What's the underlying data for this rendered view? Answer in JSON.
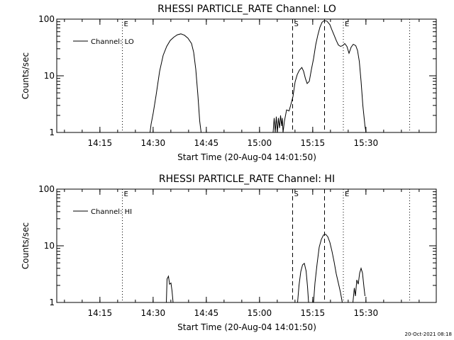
{
  "footer": {
    "timestamp": "20-Oct-2021 08:18"
  },
  "chart_data": [
    {
      "type": "line",
      "title": "RHESSI PARTICLE_RATE Channel: LO",
      "xlabel": "Start Time (20-Aug-04 14:01:50)",
      "ylabel": "Counts/sec",
      "yscale": "log",
      "ylim": [
        1,
        100
      ],
      "xlim_min": [
        1,
        108
      ],
      "x_ticks": [
        {
          "min": 13.17,
          "label": "14:15"
        },
        {
          "min": 28.17,
          "label": "14:30"
        },
        {
          "min": 43.17,
          "label": "14:45"
        },
        {
          "min": 58.17,
          "label": "15:00"
        },
        {
          "min": 73.17,
          "label": "15:15"
        },
        {
          "min": 88.17,
          "label": "15:30"
        }
      ],
      "y_ticks": [
        {
          "value": 1,
          "label": "1"
        },
        {
          "value": 10,
          "label": "10"
        },
        {
          "value": 100,
          "label": "100"
        }
      ],
      "legend": "top-left",
      "series": [
        {
          "name": "Channel: LO",
          "points": [
            [
              27.3,
              1
            ],
            [
              27.6,
              1.4
            ],
            [
              28.2,
              2.2
            ],
            [
              29,
              4.5
            ],
            [
              30,
              12
            ],
            [
              31,
              23
            ],
            [
              32,
              33
            ],
            [
              33,
              42
            ],
            [
              34,
              48
            ],
            [
              35,
              53
            ],
            [
              36,
              55
            ],
            [
              37,
              52
            ],
            [
              38,
              46
            ],
            [
              39,
              37
            ],
            [
              39.6,
              26
            ],
            [
              40.2,
              13
            ],
            [
              40.8,
              4.5
            ],
            [
              41.3,
              1.6
            ],
            [
              41.7,
              1
            ],
            [
              null,
              null
            ],
            [
              62,
              1
            ],
            [
              62.3,
              1.8
            ],
            [
              62.6,
              1
            ],
            [
              62.9,
              1.9
            ],
            [
              63.2,
              1
            ],
            [
              63.5,
              1.8
            ],
            [
              63.8,
              1.2
            ],
            [
              64.1,
              2
            ],
            [
              64.4,
              1.3
            ],
            [
              64.6,
              1.8
            ],
            [
              64.8,
              1
            ],
            [
              65.2,
              1.6
            ],
            [
              65.8,
              2.5
            ],
            [
              66.5,
              2.4
            ],
            [
              67,
              3.1
            ],
            [
              67.6,
              4.3
            ],
            [
              68.2,
              7.8
            ],
            [
              68.8,
              10.5
            ],
            [
              69.4,
              12.5
            ],
            [
              70.1,
              14
            ],
            [
              70.6,
              12
            ],
            [
              71.1,
              9
            ],
            [
              71.6,
              7.3
            ],
            [
              72.2,
              8
            ],
            [
              72.8,
              13
            ],
            [
              73.4,
              20
            ],
            [
              74,
              35
            ],
            [
              74.6,
              52
            ],
            [
              75.2,
              72
            ],
            [
              75.8,
              88
            ],
            [
              76.4,
              94
            ],
            [
              77.2,
              92
            ],
            [
              78,
              80
            ],
            [
              78.6,
              64
            ],
            [
              79.2,
              52
            ],
            [
              79.8,
              42
            ],
            [
              80.4,
              35
            ],
            [
              81,
              33
            ],
            [
              81.6,
              34
            ],
            [
              82.2,
              37
            ],
            [
              82.8,
              33
            ],
            [
              83.4,
              25
            ],
            [
              84,
              32
            ],
            [
              84.6,
              36
            ],
            [
              85.3,
              34
            ],
            [
              85.8,
              28
            ],
            [
              86.3,
              18
            ],
            [
              86.8,
              8
            ],
            [
              87.3,
              3
            ],
            [
              87.9,
              1.3
            ],
            [
              88.2,
              1
            ]
          ]
        }
      ],
      "markers": [
        {
          "min": 19.5,
          "style": "dotted",
          "label": "E"
        },
        {
          "min": 67.5,
          "style": "dashed",
          "label": "S"
        },
        {
          "min": 76.5,
          "style": "dashed",
          "label": ""
        },
        {
          "min": 81.8,
          "style": "dotted",
          "label": "E"
        },
        {
          "min": 100.5,
          "style": "dotted",
          "label": ""
        }
      ]
    },
    {
      "type": "line",
      "title": "RHESSI PARTICLE_RATE Channel: HI",
      "xlabel": "Start Time (20-Aug-04 14:01:50)",
      "ylabel": "Counts/sec",
      "yscale": "log",
      "ylim": [
        1,
        100
      ],
      "xlim_min": [
        1,
        108
      ],
      "x_ticks": [
        {
          "min": 13.17,
          "label": "14:15"
        },
        {
          "min": 28.17,
          "label": "14:30"
        },
        {
          "min": 43.17,
          "label": "14:45"
        },
        {
          "min": 58.17,
          "label": "15:00"
        },
        {
          "min": 73.17,
          "label": "15:15"
        },
        {
          "min": 88.17,
          "label": "15:30"
        }
      ],
      "y_ticks": [
        {
          "value": 1,
          "label": "1"
        },
        {
          "value": 10,
          "label": "10"
        },
        {
          "value": 100,
          "label": "100"
        }
      ],
      "legend": "top-left",
      "series": [
        {
          "name": "Channel: HI",
          "points": [
            [
              31.9,
              1
            ],
            [
              32.1,
              2.6
            ],
            [
              32.5,
              2.9
            ],
            [
              32.8,
              2.1
            ],
            [
              33.2,
              2.2
            ],
            [
              33.5,
              1.6
            ],
            [
              33.8,
              1
            ],
            [
              null,
              null
            ],
            [
              68.9,
              1
            ],
            [
              69.3,
              2
            ],
            [
              69.8,
              3.5
            ],
            [
              70.3,
              4.6
            ],
            [
              70.8,
              4.9
            ],
            [
              71.3,
              3.6
            ],
            [
              71.7,
              1.9
            ],
            [
              72,
              1
            ],
            [
              null,
              null
            ],
            [
              73.4,
              1
            ],
            [
              73.8,
              2.2
            ],
            [
              74.4,
              4.8
            ],
            [
              75,
              9.5
            ],
            [
              75.6,
              13
            ],
            [
              76.2,
              15.5
            ],
            [
              76.8,
              16
            ],
            [
              77.4,
              14.5
            ],
            [
              78,
              11.5
            ],
            [
              78.6,
              8
            ],
            [
              79.2,
              5.2
            ],
            [
              79.8,
              3.2
            ],
            [
              80.4,
              2.2
            ],
            [
              81,
              1.5
            ],
            [
              81.5,
              1
            ],
            [
              null,
              null
            ],
            [
              84.5,
              1
            ],
            [
              84.9,
              1.8
            ],
            [
              85.2,
              1.3
            ],
            [
              85.6,
              2.5
            ],
            [
              86,
              2.1
            ],
            [
              86.4,
              3.3
            ],
            [
              86.8,
              4
            ],
            [
              87.2,
              3.3
            ],
            [
              87.6,
              1.9
            ],
            [
              87.9,
              1.3
            ]
          ]
        }
      ],
      "markers": [
        {
          "min": 19.5,
          "style": "dotted",
          "label": "E"
        },
        {
          "min": 67.5,
          "style": "dashed",
          "label": "S"
        },
        {
          "min": 76.5,
          "style": "dashed",
          "label": ""
        },
        {
          "min": 81.8,
          "style": "dotted",
          "label": "E"
        },
        {
          "min": 100.5,
          "style": "dotted",
          "label": ""
        }
      ]
    }
  ]
}
